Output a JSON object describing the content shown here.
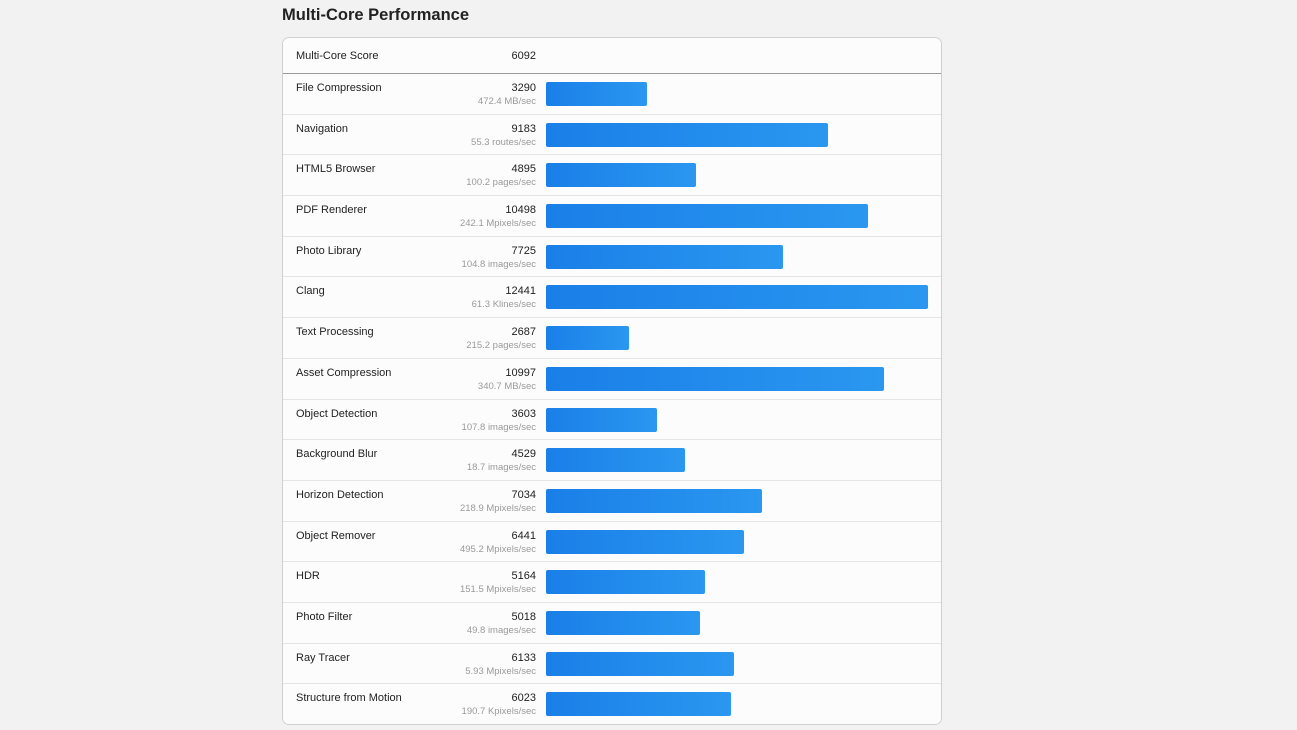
{
  "section_title": "Multi-Core Performance",
  "summary": {
    "label": "Multi-Core Score",
    "score": "6092"
  },
  "colors": {
    "bar_start": "#1a7fe8",
    "bar_end": "#2a97f0",
    "background": "#f2f2f2"
  },
  "chart_data": {
    "type": "bar",
    "orientation": "horizontal",
    "title": "Multi-Core Performance",
    "xlim": [
      0,
      12441
    ],
    "categories": [
      "File Compression",
      "Navigation",
      "HTML5 Browser",
      "PDF Renderer",
      "Photo Library",
      "Clang",
      "Text Processing",
      "Asset Compression",
      "Object Detection",
      "Background Blur",
      "Horizon Detection",
      "Object Remover",
      "HDR",
      "Photo Filter",
      "Ray Tracer",
      "Structure from Motion"
    ],
    "values": [
      3290,
      9183,
      4895,
      10498,
      7725,
      12441,
      2687,
      10997,
      3603,
      4529,
      7034,
      6441,
      5164,
      5018,
      6133,
      6023
    ],
    "rows": [
      {
        "name": "File Compression",
        "score": "3290",
        "rate": "472.4 MB/sec"
      },
      {
        "name": "Navigation",
        "score": "9183",
        "rate": "55.3 routes/sec"
      },
      {
        "name": "HTML5 Browser",
        "score": "4895",
        "rate": "100.2 pages/sec"
      },
      {
        "name": "PDF Renderer",
        "score": "10498",
        "rate": "242.1 Mpixels/sec"
      },
      {
        "name": "Photo Library",
        "score": "7725",
        "rate": "104.8 images/sec"
      },
      {
        "name": "Clang",
        "score": "12441",
        "rate": "61.3 Klines/sec"
      },
      {
        "name": "Text Processing",
        "score": "2687",
        "rate": "215.2 pages/sec"
      },
      {
        "name": "Asset Compression",
        "score": "10997",
        "rate": "340.7 MB/sec"
      },
      {
        "name": "Object Detection",
        "score": "3603",
        "rate": "107.8 images/sec"
      },
      {
        "name": "Background Blur",
        "score": "4529",
        "rate": "18.7 images/sec"
      },
      {
        "name": "Horizon Detection",
        "score": "7034",
        "rate": "218.9 Mpixels/sec"
      },
      {
        "name": "Object Remover",
        "score": "6441",
        "rate": "495.2 Mpixels/sec"
      },
      {
        "name": "HDR",
        "score": "5164",
        "rate": "151.5 Mpixels/sec"
      },
      {
        "name": "Photo Filter",
        "score": "5018",
        "rate": "49.8 images/sec"
      },
      {
        "name": "Ray Tracer",
        "score": "6133",
        "rate": "5.93 Mpixels/sec"
      },
      {
        "name": "Structure from Motion",
        "score": "6023",
        "rate": "190.7 Kpixels/sec"
      }
    ]
  }
}
